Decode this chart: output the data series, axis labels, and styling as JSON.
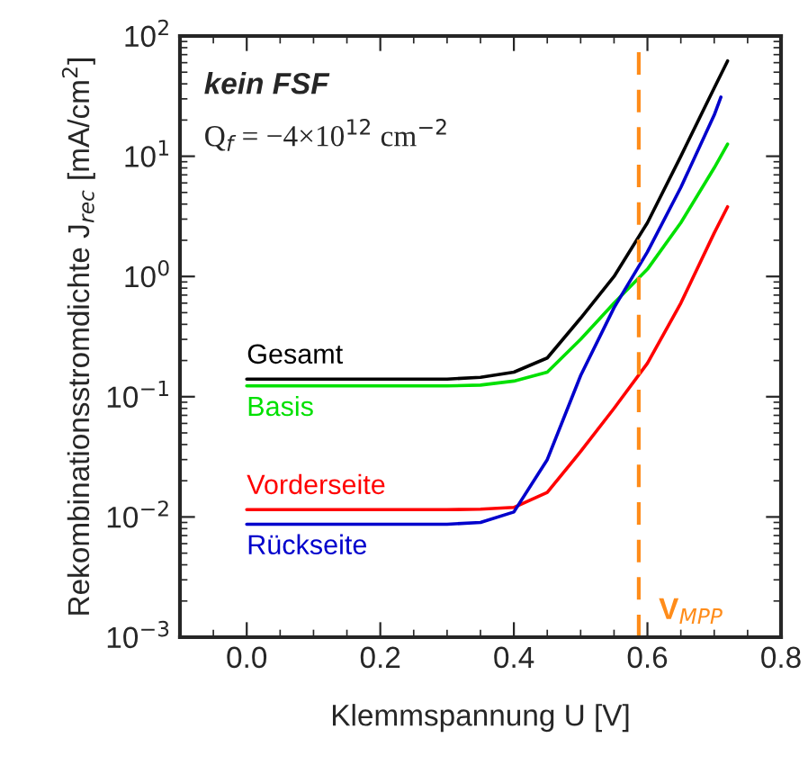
{
  "chart_data": {
    "type": "line",
    "xlabel": "Klemmspannung U [V]",
    "ylabel": "Rekombinationsstromdichte J$_{rec}$ [mA/cm$^{2}$]",
    "annotations": [
      "kein FSF",
      "Q$_{f}$ = −4×10$^{12}$ cm$^{−2}$"
    ],
    "log": "y",
    "legend": false,
    "grid": false,
    "xlim": [
      -0.1,
      0.8
    ],
    "xticks": [
      {
        "value": 0,
        "label": "0.0"
      },
      0.2,
      0.4,
      0.6,
      0.8
    ],
    "ylim": [
      0.001,
      100
    ],
    "yticks": [
      {
        "value": 0.001,
        "label": "10$^{−3}$"
      },
      {
        "value": 0.01,
        "label": "10$^{−2}$"
      },
      {
        "value": 0.1,
        "label": "10$^{−1}$"
      },
      {
        "value": 1,
        "label": "10$^{0}$"
      },
      {
        "value": 10,
        "label": "10$^{1}$"
      },
      {
        "value": 100,
        "label": "10$^{2}$"
      }
    ],
    "ref_lines": [
      {
        "axis": "x",
        "value": 0.587,
        "label": "V$_{MPP}$",
        "color": "#ff8c1a",
        "line_style": "dashed"
      }
    ],
    "series": [
      {
        "name": "Gesamt",
        "color": "#000000",
        "x": [
          0,
          0.3,
          0.35,
          0.4,
          0.45,
          0.5,
          0.55,
          0.6,
          0.65,
          0.7,
          0.72
        ],
        "values": [
          0.14,
          0.14,
          0.145,
          0.16,
          0.21,
          0.45,
          1.0,
          2.8,
          10,
          37,
          62
        ]
      },
      {
        "name": "Basis",
        "color": "#00e000",
        "x": [
          0,
          0.3,
          0.35,
          0.4,
          0.45,
          0.5,
          0.55,
          0.6,
          0.65,
          0.7,
          0.72
        ],
        "values": [
          0.123,
          0.123,
          0.125,
          0.135,
          0.16,
          0.3,
          0.6,
          1.15,
          2.8,
          8,
          12.6
        ]
      },
      {
        "name": "Vorderseite",
        "color": "#ff0000",
        "x": [
          0,
          0.3,
          0.35,
          0.4,
          0.45,
          0.5,
          0.55,
          0.6,
          0.65,
          0.7,
          0.72
        ],
        "values": [
          0.0115,
          0.0115,
          0.0116,
          0.012,
          0.016,
          0.035,
          0.08,
          0.19,
          0.6,
          2.3,
          3.8
        ]
      },
      {
        "name": "Rückseite",
        "color": "#0000cc",
        "x": [
          0,
          0.3,
          0.35,
          0.4,
          0.45,
          0.5,
          0.55,
          0.6,
          0.65,
          0.7,
          0.71
        ],
        "values": [
          0.0087,
          0.0087,
          0.009,
          0.011,
          0.03,
          0.15,
          0.55,
          1.6,
          5.5,
          22,
          31
        ]
      }
    ]
  }
}
